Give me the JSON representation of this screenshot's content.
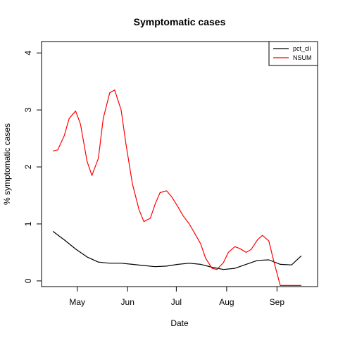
{
  "chart_data": {
    "type": "line",
    "title": "Symptomatic cases",
    "xlabel": "Date",
    "ylabel": "% symptomatic cases",
    "x_ticks": [
      "May",
      "Jun",
      "Jul",
      "Aug",
      "Sep"
    ],
    "x_tick_dates": [
      "2020-05-01",
      "2020-06-01",
      "2020-07-01",
      "2020-08-01",
      "2020-09-01"
    ],
    "xlim": [
      "2020-04-09",
      "2020-09-26"
    ],
    "y_ticks": [
      0,
      1,
      2,
      3,
      4
    ],
    "ylim": [
      -0.1,
      4.2
    ],
    "legend": "top-right",
    "grid": false,
    "series": [
      {
        "name": "pct_cli",
        "color": "#000000",
        "x": [
          "2020-04-16",
          "2020-04-23",
          "2020-04-30",
          "2020-05-07",
          "2020-05-14",
          "2020-05-21",
          "2020-05-28",
          "2020-06-04",
          "2020-06-11",
          "2020-06-18",
          "2020-06-25",
          "2020-07-02",
          "2020-07-09",
          "2020-07-16",
          "2020-07-23",
          "2020-07-30",
          "2020-08-06",
          "2020-08-13",
          "2020-08-20",
          "2020-08-27",
          "2020-09-03",
          "2020-09-10",
          "2020-09-16"
        ],
        "values": [
          0.87,
          0.72,
          0.56,
          0.42,
          0.33,
          0.31,
          0.31,
          0.29,
          0.27,
          0.25,
          0.26,
          0.29,
          0.31,
          0.29,
          0.24,
          0.2,
          0.22,
          0.29,
          0.36,
          0.37,
          0.29,
          0.28,
          0.44
        ]
      },
      {
        "name": "NSUM",
        "color": "#ff0000",
        "x": [
          "2020-04-16",
          "2020-04-19",
          "2020-04-23",
          "2020-04-26",
          "2020-04-30",
          "2020-05-03",
          "2020-05-07",
          "2020-05-10",
          "2020-05-14",
          "2020-05-17",
          "2020-05-21",
          "2020-05-24",
          "2020-05-28",
          "2020-05-31",
          "2020-06-04",
          "2020-06-08",
          "2020-06-11",
          "2020-06-15",
          "2020-06-18",
          "2020-06-21",
          "2020-06-25",
          "2020-06-28",
          "2020-07-02",
          "2020-07-05",
          "2020-07-09",
          "2020-07-12",
          "2020-07-16",
          "2020-07-19",
          "2020-07-23",
          "2020-07-26",
          "2020-07-30",
          "2020-08-02",
          "2020-08-06",
          "2020-08-09",
          "2020-08-13",
          "2020-08-16",
          "2020-08-20",
          "2020-08-23",
          "2020-08-27",
          "2020-08-30",
          "2020-09-03",
          "2020-09-06",
          "2020-09-10",
          "2020-09-13",
          "2020-09-16"
        ],
        "values": [
          2.28,
          2.3,
          2.55,
          2.85,
          2.98,
          2.75,
          2.1,
          1.85,
          2.15,
          2.85,
          3.3,
          3.35,
          3.0,
          2.4,
          1.7,
          1.25,
          1.04,
          1.1,
          1.35,
          1.55,
          1.58,
          1.48,
          1.3,
          1.15,
          1.0,
          0.85,
          0.65,
          0.4,
          0.22,
          0.2,
          0.32,
          0.5,
          0.6,
          0.57,
          0.5,
          0.55,
          0.72,
          0.8,
          0.7,
          0.35,
          -0.08,
          -0.08,
          -0.08,
          -0.08,
          -0.08
        ]
      }
    ]
  }
}
